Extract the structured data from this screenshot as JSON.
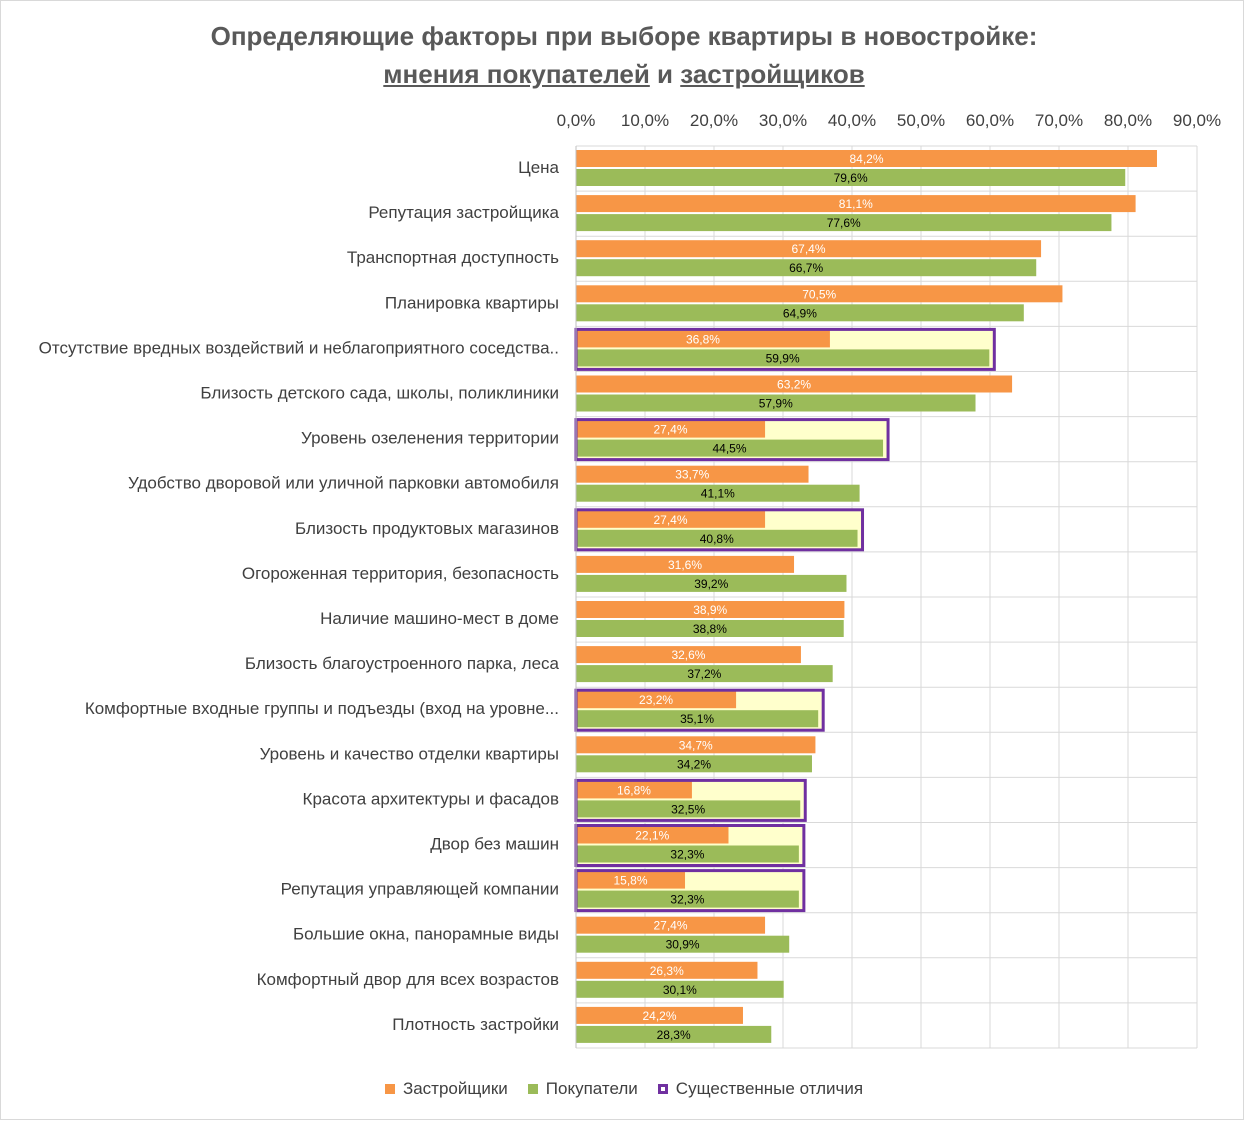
{
  "title": {
    "line1": "Определяющие факторы при выборе квартиры в новостройке:",
    "line2_part1": "мнения покупателей",
    "line2_and": " и ",
    "line2_part2": "застройщиков"
  },
  "colors": {
    "developers": "#f79646",
    "buyers": "#9bbb59",
    "highlight_border": "#7030a0",
    "highlight_fill": "#ffffcc",
    "grid": "#d9d9d9"
  },
  "legend": {
    "developers": "Застройщики",
    "buyers": "Покупатели",
    "difference": "Существенные отличия"
  },
  "chart_data": {
    "type": "bar",
    "orientation": "horizontal",
    "xlim": [
      0,
      90
    ],
    "x_ticks": [
      "0,0%",
      "10,0%",
      "20,0%",
      "30,0%",
      "40,0%",
      "50,0%",
      "60,0%",
      "70,0%",
      "80,0%",
      "90,0%"
    ],
    "x_tick_values": [
      0,
      10,
      20,
      30,
      40,
      50,
      60,
      70,
      80,
      90
    ],
    "axis_position": "top",
    "grid": true,
    "legend_position": "bottom",
    "categories": [
      "Цена",
      "Репутация застройщика",
      "Транспортная доступность",
      "Планировка квартиры",
      "Отсутствие вредных воздействий и неблагоприятного соседства..",
      "Близость детского сада, школы, поликлиники",
      "Уровень озеленения территории",
      "Удобство дворовой или уличной парковки автомобиля",
      "Близость продуктовых магазинов",
      "Огороженная территория, безопасность",
      "Наличие машино-мест в доме",
      "Близость благоустроенного парка, леса",
      "Комфортные входные группы и подъезды (вход на уровне...",
      "Уровень и качество отделки квартиры",
      "Красота архитектуры и фасадов",
      "Двор без машин",
      "Репутация управляющей компании",
      "Большие окна, панорамные виды",
      "Комфортный двор для всех возрастов",
      "Плотность застройки"
    ],
    "series": [
      {
        "name": "Застройщики",
        "values": [
          84.2,
          81.1,
          67.4,
          70.5,
          36.8,
          63.2,
          27.4,
          33.7,
          27.4,
          31.6,
          38.9,
          32.6,
          23.2,
          34.7,
          16.8,
          22.1,
          15.8,
          27.4,
          26.3,
          24.2
        ],
        "labels": [
          "84,2%",
          "81,1%",
          "67,4%",
          "70,5%",
          "36,8%",
          "63,2%",
          "27,4%",
          "33,7%",
          "27,4%",
          "31,6%",
          "38,9%",
          "32,6%",
          "23,2%",
          "34,7%",
          "16,8%",
          "22,1%",
          "15,8%",
          "27,4%",
          "26,3%",
          "24,2%"
        ]
      },
      {
        "name": "Покупатели",
        "values": [
          79.6,
          77.6,
          66.7,
          64.9,
          59.9,
          57.9,
          44.5,
          41.1,
          40.8,
          39.2,
          38.8,
          37.2,
          35.1,
          34.2,
          32.5,
          32.3,
          32.3,
          30.9,
          30.1,
          28.3
        ],
        "labels": [
          "79,6%",
          "77,6%",
          "66,7%",
          "64,9%",
          "59,9%",
          "57,9%",
          "44,5%",
          "41,1%",
          "40,8%",
          "39,2%",
          "38,8%",
          "37,2%",
          "35,1%",
          "34,2%",
          "32,5%",
          "32,3%",
          "32,3%",
          "30,9%",
          "30,1%",
          "28,3%"
        ]
      }
    ],
    "significant_difference_rows": [
      4,
      6,
      8,
      12,
      14,
      15,
      16
    ]
  }
}
